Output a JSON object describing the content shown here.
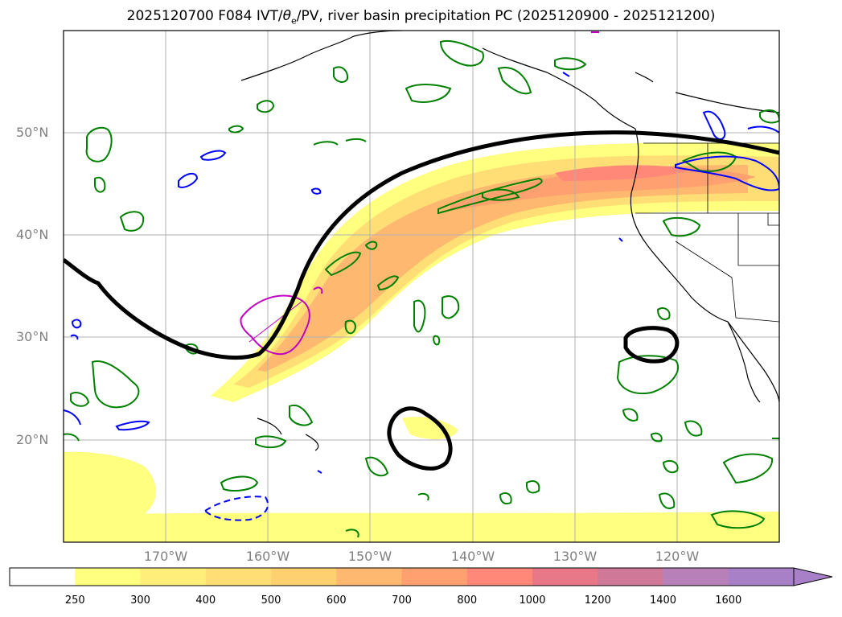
{
  "figure": {
    "title_prefix": "2025120700 F084 IVT/",
    "title_theta": "θ",
    "title_sub": "e",
    "title_suffix": "/PV, river basin precipitation PC (2025120900 - 2025121200)"
  },
  "axes": {
    "lat_labels": [
      "50°N",
      "40°N",
      "30°N",
      "20°N"
    ],
    "lon_labels": [
      "170°W",
      "160°W",
      "150°W",
      "140°W",
      "130°W",
      "120°W"
    ]
  },
  "colorbar": {
    "labels": [
      "250",
      "300",
      "400",
      "500",
      "600",
      "700",
      "800",
      "1000",
      "1200",
      "1400",
      "1600"
    ],
    "colors": [
      "#ffffff",
      "#ffff80",
      "#ffef7a",
      "#ffdf75",
      "#ffd070",
      "#ffb870",
      "#ffa070",
      "#ff8878",
      "#e87888",
      "#d07898",
      "#b880b8",
      "#a880c8"
    ]
  },
  "legend_colors": {
    "ivt_contours": "#000000",
    "theta_e": "#008000",
    "pv": "#0000ff",
    "basin": "#c000c0"
  }
}
